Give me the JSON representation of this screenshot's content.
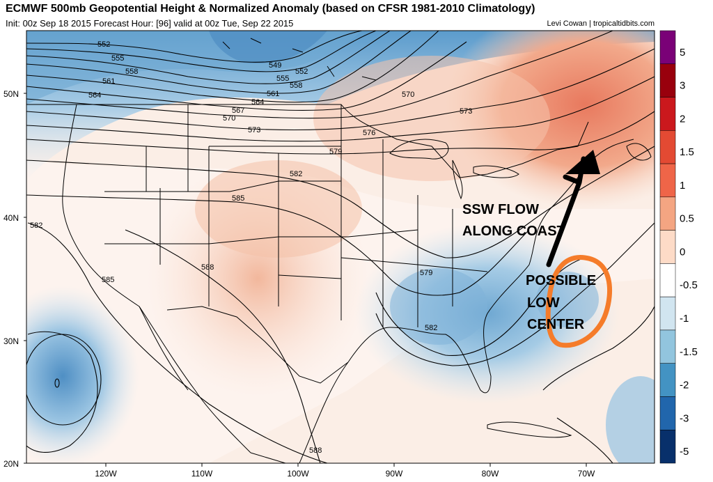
{
  "header": {
    "title": "ECMWF 500mb Geopotential Height & Normalized Anomaly (based on CFSR 1981-2010 Climatology)",
    "subtitle": "Init: 00z Sep 18 2015   Forecast Hour: [96]   valid at 00z Tue, Sep 22 2015",
    "credit": "Levi Cowan | tropicaltidbits.com"
  },
  "axes": {
    "lat_labels": [
      "50N",
      "40N",
      "30N",
      "20N"
    ],
    "lon_labels": [
      "120W",
      "110W",
      "100W",
      "90W",
      "80W",
      "70W"
    ]
  },
  "colorbar": {
    "labels": [
      "5",
      "3",
      "2",
      "1.5",
      "1",
      "0.5",
      "0",
      "-0.5",
      "-1",
      "-1.5",
      "-2",
      "-3",
      "-5"
    ],
    "colors": [
      "#7a0177",
      "#99000d",
      "#cb181d",
      "#e34a33",
      "#ef6548",
      "#f4a582",
      "#fddbc7",
      "#ffffff",
      "#d1e5f0",
      "#92c5de",
      "#4393c3",
      "#2166ac",
      "#08306b"
    ]
  },
  "contour_labels": [
    "552",
    "555",
    "558",
    "561",
    "564",
    "549",
    "552",
    "555",
    "558",
    "561",
    "564",
    "567",
    "570",
    "573",
    "570",
    "573",
    "576",
    "579",
    "582",
    "585",
    "588",
    "582",
    "585",
    "579",
    "582",
    "588"
  ],
  "annotations": {
    "flow_text_1": "SSW FLOW",
    "flow_text_2": "ALONG COAST",
    "low_text_1": "POSSIBLE",
    "low_text_2": "LOW",
    "low_text_3": "CENTER"
  }
}
